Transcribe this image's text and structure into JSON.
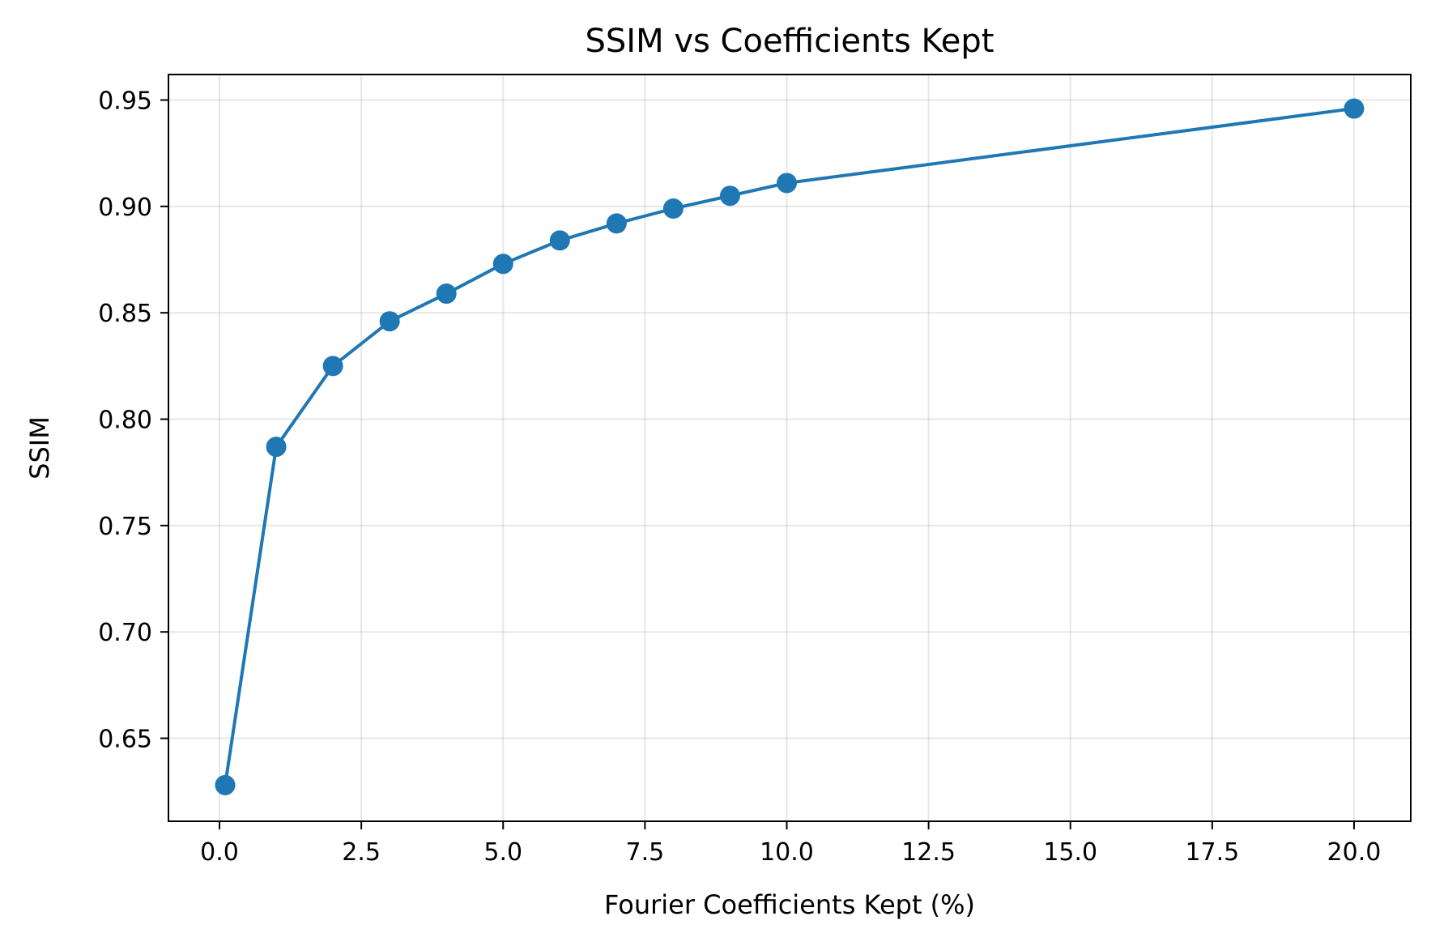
{
  "chart_data": {
    "type": "line",
    "title": "SSIM vs Coefficients Kept",
    "xlabel": "Fourier Coefficients Kept (%)",
    "ylabel": "SSIM",
    "xlim": [
      -0.9,
      21.0
    ],
    "ylim": [
      0.611,
      0.962
    ],
    "x_ticks": [
      0.0,
      2.5,
      5.0,
      7.5,
      10.0,
      12.5,
      15.0,
      17.5,
      20.0
    ],
    "x_tick_labels": [
      "0.0",
      "2.5",
      "5.0",
      "7.5",
      "10.0",
      "12.5",
      "15.0",
      "17.5",
      "20.0"
    ],
    "y_ticks": [
      0.65,
      0.7,
      0.75,
      0.8,
      0.85,
      0.9,
      0.95
    ],
    "y_tick_labels": [
      "0.65",
      "0.70",
      "0.75",
      "0.80",
      "0.85",
      "0.90",
      "0.95"
    ],
    "grid": true,
    "color": "#1f77b4",
    "marker": "circle",
    "series": [
      {
        "x": [
          0.1,
          1,
          2,
          3,
          4,
          5,
          6,
          7,
          8,
          9,
          10,
          20
        ],
        "values": [
          0.628,
          0.787,
          0.825,
          0.846,
          0.859,
          0.873,
          0.884,
          0.892,
          0.899,
          0.905,
          0.911,
          0.946
        ]
      }
    ]
  }
}
